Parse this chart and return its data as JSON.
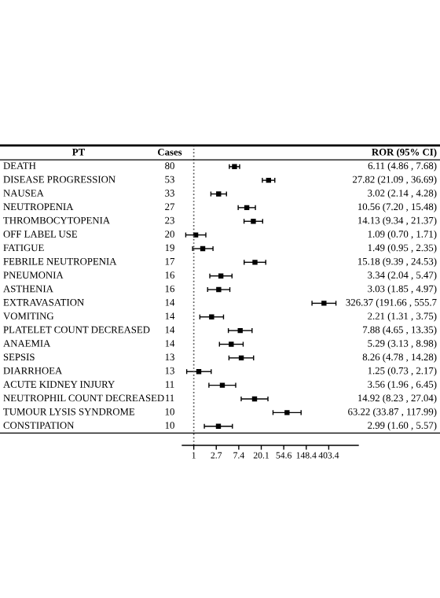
{
  "chart_data": {
    "type": "scatter",
    "orientation": "horizontal",
    "ylabel": "PT",
    "y2label": "Cases",
    "annotations": [
      "ROR (95% CI)"
    ],
    "categories": [
      "DEATH",
      "DISEASE PROGRESSION",
      "NAUSEA",
      "NEUTROPENIA",
      "THROMBOCYTOPENIA",
      "OFF LABEL USE",
      "FATIGUE",
      "FEBRILE NEUTROPENIA",
      "PNEUMONIA",
      "ASTHENIA",
      "EXTRAVASATION",
      "VOMITING",
      "PLATELET COUNT DECREASED",
      "ANAEMIA",
      "SEPSIS",
      "DIARRHOEA",
      "ACUTE KIDNEY INJURY",
      "NEUTROPHIL COUNT DECREASED",
      "TUMOUR LYSIS SYNDROME",
      "CONSTIPATION"
    ],
    "y2_categories": [
      "80",
      "53",
      "33",
      "27",
      "23",
      "20",
      "19",
      "17",
      "16",
      "16",
      "14",
      "14",
      "14",
      "14",
      "13",
      "13",
      "11",
      "11",
      "10",
      "10"
    ],
    "values": [
      6.11,
      27.82,
      3.02,
      10.56,
      14.13,
      1.09,
      1.49,
      15.18,
      3.34,
      3.03,
      326.37,
      2.21,
      7.88,
      5.29,
      8.26,
      1.25,
      3.56,
      14.92,
      63.22,
      2.99
    ],
    "errors": [
      [
        4.86,
        7.68
      ],
      [
        21.09,
        36.69
      ],
      [
        2.14,
        4.28
      ],
      [
        7.2,
        15.48
      ],
      [
        9.34,
        21.37
      ],
      [
        0.7,
        1.71
      ],
      [
        0.95,
        2.35
      ],
      [
        9.39,
        24.53
      ],
      [
        2.04,
        5.47
      ],
      [
        1.85,
        4.97
      ],
      [
        191.66,
        555.7
      ],
      [
        1.31,
        3.75
      ],
      [
        4.65,
        13.35
      ],
      [
        3.13,
        8.98
      ],
      [
        4.78,
        14.28
      ],
      [
        0.73,
        2.17
      ],
      [
        1.96,
        6.45
      ],
      [
        8.23,
        27.04
      ],
      [
        33.87,
        117.99
      ],
      [
        1.6,
        5.57
      ]
    ],
    "value_labels": [
      "6.11 (4.86 , 7.68)",
      "27.82 (21.09 , 36.69)",
      "3.02 (2.14 , 4.28)",
      "10.56 (7.20 , 15.48)",
      "14.13 (9.34 , 21.37)",
      "1.09 (0.70 , 1.71)",
      "1.49 (0.95 , 2.35)",
      "15.18 (9.39 , 24.53)",
      "3.34 (2.04 , 5.47)",
      "3.03 (1.85 , 4.97)",
      "326.37 (191.66 , 555.7",
      "2.21 (1.31 , 3.75)",
      "7.88 (4.65 , 13.35)",
      "5.29 (3.13 , 8.98)",
      "8.26 (4.78 , 14.28)",
      "1.25 (0.73 , 2.17)",
      "3.56 (1.96 , 6.45)",
      "14.92 (8.23 , 27.04)",
      "63.22 (33.87 , 117.99)",
      "2.99 (1.60 , 5.57)"
    ],
    "color": "#000000",
    "marker": "square",
    "log": "x",
    "xlim": [
      0.6,
      1500
    ],
    "xticks": [
      1,
      {
        "value": 2.718,
        "label": "2.7"
      },
      {
        "value": 7.389,
        "label": "7.4"
      },
      {
        "value": 20.086,
        "label": "20.1"
      },
      {
        "value": 54.598,
        "label": "54.6"
      },
      {
        "value": 148.413,
        "label": "148.4"
      },
      {
        "value": 403.429,
        "label": "403.4"
      }
    ],
    "ref_lines": [
      {
        "axis": "x",
        "value": 1,
        "line_style": "dotted",
        "color": "#555555"
      }
    ],
    "grid": false
  }
}
